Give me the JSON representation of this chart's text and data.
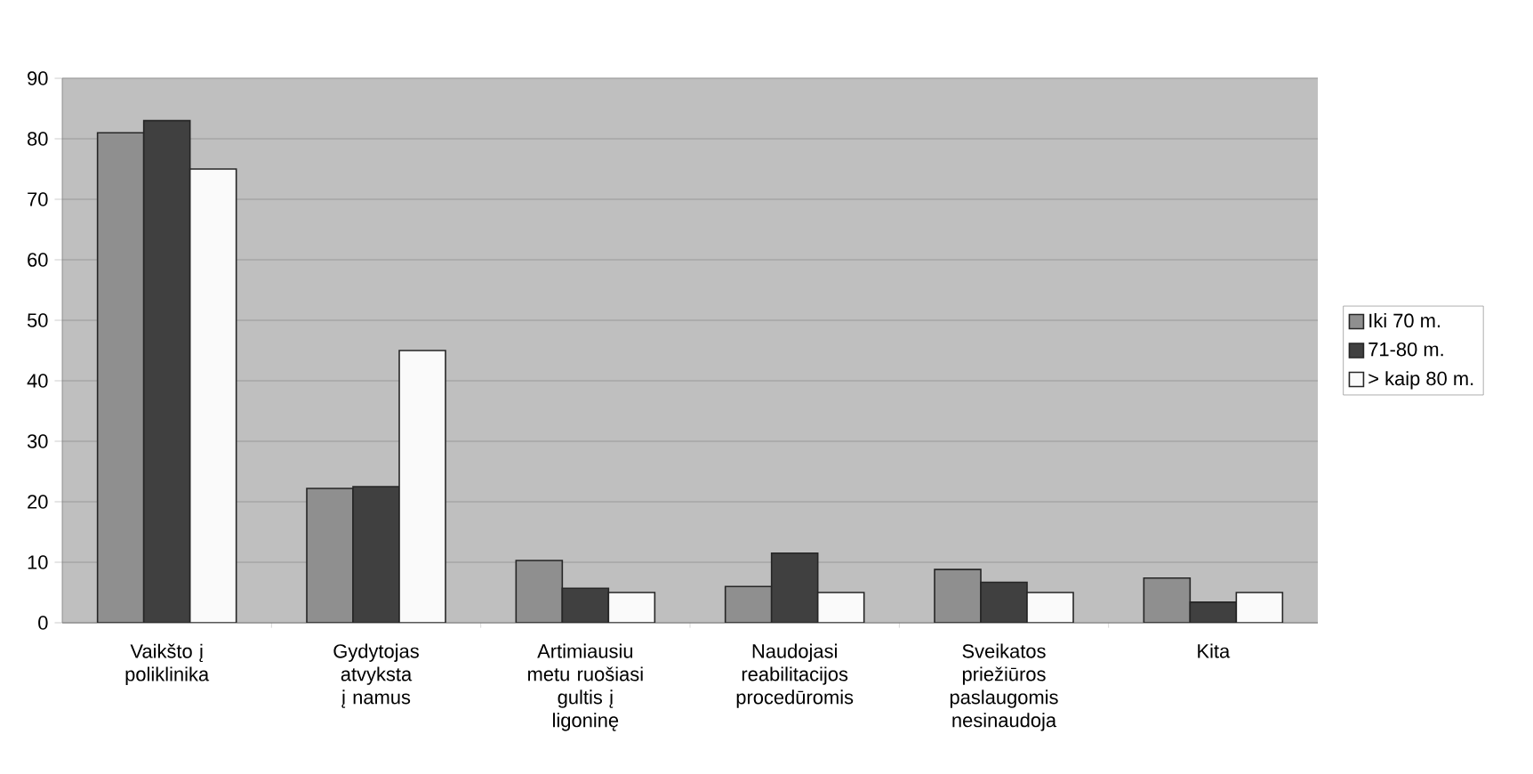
{
  "chart_data": {
    "type": "bar",
    "categories": [
      "Vaikšto į poliklinika",
      "Gydytojas atvyksta į namus",
      "Artimiausiu metu ruošiasi gultis į ligoninę",
      "Naudojasi reabilitacijos procedūromis",
      "Sveikatos priežiūros paslaugomis nesinaudoja",
      "Kita"
    ],
    "series": [
      {
        "name": "Iki 70 m.",
        "color": "#8f8f8f",
        "values": [
          81,
          22.2,
          10.3,
          6,
          8.8,
          7.4
        ]
      },
      {
        "name": "71-80 m.",
        "color": "#404040",
        "values": [
          83,
          22.5,
          5.7,
          11.5,
          6.7,
          3.4
        ]
      },
      {
        "name": "> kaip 80 m.",
        "color": "#fafafa",
        "values": [
          75,
          45,
          5,
          5,
          5,
          5
        ]
      }
    ],
    "ylim": [
      0,
      90
    ],
    "yticks": [
      0,
      10,
      20,
      30,
      40,
      50,
      60,
      70,
      80,
      90
    ],
    "grid": "y",
    "legend": "right"
  }
}
